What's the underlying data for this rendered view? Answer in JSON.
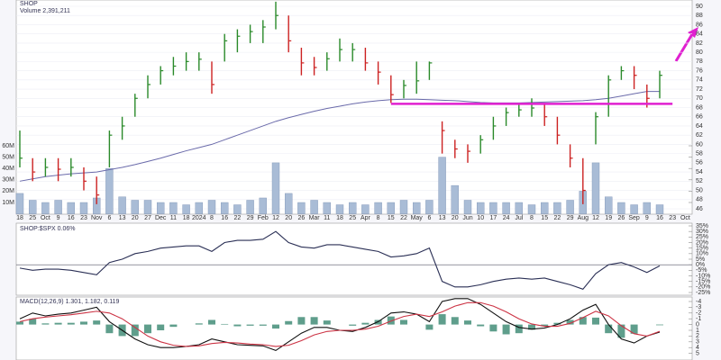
{
  "chart_data": [
    {
      "type": "ohlc",
      "title": "SHOP",
      "volume_title": "Volume 2,391,211",
      "categories": [
        "18",
        "25",
        "Oct",
        "9",
        "16",
        "23",
        "Nov",
        "6",
        "13",
        "20",
        "27",
        "Dec",
        "11",
        "18",
        "2024",
        "8",
        "16",
        "22",
        "29",
        "Feb",
        "12",
        "20",
        "26",
        "Mar",
        "11",
        "18",
        "25",
        "Apr",
        "8",
        "15",
        "22",
        "May",
        "6",
        "13",
        "20",
        "Jun",
        "10",
        "17",
        "24",
        "Jul",
        "8",
        "15",
        "22",
        "29",
        "Aug",
        "12",
        "19",
        "26",
        "Sep",
        "9",
        "16",
        "23",
        "Oct"
      ],
      "high": [
        63,
        57,
        57,
        57,
        57,
        55,
        53,
        63,
        66,
        71,
        75,
        77,
        79,
        80,
        80,
        78,
        84,
        85,
        86,
        87,
        91,
        88,
        81,
        79,
        80,
        83,
        82,
        81,
        78,
        75,
        74,
        78,
        78,
        65,
        61,
        60,
        62,
        66,
        68,
        69,
        70,
        69,
        66,
        60,
        57,
        67,
        75,
        77,
        77,
        73,
        76,
        null,
        null
      ],
      "low": [
        55,
        52,
        53,
        52,
        53,
        50,
        47,
        55,
        61,
        66,
        70,
        73,
        75,
        76,
        76,
        71,
        78,
        80,
        82,
        82,
        85,
        80,
        75,
        75,
        76,
        78,
        78,
        76,
        73,
        69,
        70,
        71,
        74,
        58,
        57,
        56,
        58,
        61,
        64,
        66,
        66,
        64,
        60,
        55,
        47,
        60,
        66,
        74,
        72,
        68,
        70,
        null,
        null
      ],
      "close": [
        57,
        54,
        55,
        54.6,
        55,
        52,
        49,
        62,
        64,
        70,
        73,
        76,
        77,
        78,
        78.5,
        73,
        82.5,
        83.5,
        84.5,
        85.5,
        88,
        82.5,
        77.7,
        76.7,
        78.6,
        80.6,
        80.6,
        77.7,
        75.7,
        70.8,
        72.8,
        73.8,
        77.7,
        63,
        59,
        58.5,
        61,
        64,
        66.9,
        67.5,
        67.9,
        66,
        62,
        57,
        50,
        66,
        74,
        76,
        75,
        70,
        75,
        null,
        null
      ],
      "up_color": "#2a8a2a",
      "down_color": "#cc2222",
      "moving_average": [
        52,
        52.5,
        53,
        53.3,
        53.6,
        53.8,
        54,
        54.5,
        55,
        55.6,
        56.3,
        57,
        57.8,
        58.6,
        59.3,
        60,
        61,
        62,
        63,
        64,
        65,
        65.8,
        66.5,
        67.2,
        67.8,
        68.3,
        68.8,
        69.2,
        69.5,
        69.7,
        69.8,
        69.8,
        69.7,
        69.6,
        69.5,
        69.3,
        69.1,
        69,
        69,
        69,
        69.1,
        69.2,
        69.3,
        69.4,
        69.5,
        69.7,
        70,
        70.5,
        71,
        71.5,
        71.5,
        null,
        null
      ],
      "ma_color": "#6a6aaa",
      "ylim": [
        46,
        90
      ],
      "yticks": [
        46,
        48,
        50,
        52,
        54,
        56,
        58,
        60,
        62,
        64,
        66,
        68,
        70,
        72,
        74,
        76,
        78,
        80,
        82,
        84,
        86,
        88,
        90
      ],
      "volume": [
        18,
        12,
        10,
        12,
        10,
        10,
        14,
        40,
        15,
        12,
        12,
        10,
        10,
        8,
        10,
        12,
        10,
        8,
        12,
        14,
        45,
        18,
        10,
        12,
        10,
        8,
        10,
        8,
        10,
        10,
        12,
        10,
        12,
        50,
        25,
        12,
        10,
        10,
        10,
        10,
        8,
        10,
        10,
        12,
        20,
        45,
        15,
        10,
        8,
        10,
        8,
        null,
        null
      ],
      "volume_color": "#a9bcd6",
      "volume_lim": [
        0,
        60
      ],
      "volume_ticks": [
        {
          "value": 10,
          "label": "10M"
        },
        {
          "value": 20,
          "label": "20M"
        },
        {
          "value": 30,
          "label": "30M"
        },
        {
          "value": 40,
          "label": "40M"
        },
        {
          "value": 50,
          "label": "50M"
        },
        {
          "value": 60,
          "label": "60M"
        }
      ],
      "support": {
        "value": 68.8,
        "start": 29,
        "end": 51,
        "color": "#e020d0"
      }
    },
    {
      "type": "line",
      "title": "SHOP:$SPX 0.06%",
      "values": [
        -3,
        -5,
        -4,
        -4,
        -5,
        -7,
        -9,
        2,
        5,
        10,
        12,
        15,
        16,
        17,
        17,
        12,
        20,
        22,
        22,
        23,
        30,
        20,
        16,
        15,
        18,
        18,
        16,
        14,
        12,
        7,
        8,
        10,
        15,
        -15,
        -20,
        -20,
        -18,
        -15,
        -13,
        -12,
        -13,
        -12,
        -15,
        -18,
        -22,
        -8,
        0,
        2,
        -2,
        -7,
        -1,
        null,
        null
      ],
      "color": "#2a2f55",
      "zero_line": 0,
      "ylim": [
        -25,
        35
      ],
      "yticks": [
        {
          "value": -25,
          "label": "-25%"
        },
        {
          "value": -20,
          "label": "-20%"
        },
        {
          "value": -15,
          "label": "-15%"
        },
        {
          "value": -10,
          "label": "-10%"
        },
        {
          "value": -5,
          "label": "-5%"
        },
        {
          "value": 0,
          "label": "0%"
        },
        {
          "value": 5,
          "label": "5%"
        },
        {
          "value": 10,
          "label": "10%"
        },
        {
          "value": 15,
          "label": "15%"
        },
        {
          "value": 20,
          "label": "20%"
        },
        {
          "value": 25,
          "label": "25%"
        },
        {
          "value": 30,
          "label": "30%"
        },
        {
          "value": 35,
          "label": "35%"
        }
      ]
    },
    {
      "type": "macd",
      "title": "MACD(12,26,9) 1.301, 1.182, 0.119",
      "series": [
        {
          "color": "#111111",
          "values": [
            -1,
            -2,
            -1.5,
            -1.8,
            -2,
            -2.5,
            -3,
            -0.5,
            1,
            2.5,
            3.5,
            4,
            4,
            3.8,
            3.5,
            2.5,
            3,
            3.5,
            3.6,
            3.7,
            4.5,
            3,
            1.5,
            0.5,
            0.5,
            1,
            1.2,
            0.5,
            -0.5,
            -2,
            -2.2,
            -1.8,
            -0.5,
            -4,
            -4.5,
            -4.5,
            -3.5,
            -2,
            -0.5,
            0.5,
            0.8,
            0.6,
            0,
            -1,
            -2.5,
            -3.5,
            0,
            2.5,
            3.2,
            2,
            1.301,
            null,
            null
          ]
        },
        {
          "color": "#cc3344",
          "values": [
            -0.5,
            -1,
            -1.3,
            -1.5,
            -1.7,
            -2,
            -2.3,
            -2,
            -1,
            0.5,
            2,
            3,
            3.6,
            3.8,
            3.7,
            3.3,
            3.1,
            3.2,
            3.4,
            3.5,
            3.8,
            3.6,
            2.8,
            1.8,
            1.2,
            1,
            1,
            0.8,
            0.3,
            -0.6,
            -1.4,
            -1.8,
            -1.4,
            -2.2,
            -3.2,
            -3.8,
            -3.8,
            -3.2,
            -2.2,
            -1,
            -0.1,
            0.3,
            0.3,
            -0.2,
            -1.2,
            -2.3,
            -1.5,
            0.2,
            1.6,
            2,
            1.182,
            null,
            null
          ]
        }
      ],
      "histogram": [
        -0.5,
        -1,
        -0.2,
        -0.3,
        -0.3,
        -0.5,
        -0.7,
        1.5,
        2,
        2,
        1.5,
        1,
        0.4,
        0,
        -0.2,
        -0.8,
        -0.1,
        0.3,
        0.2,
        0.2,
        0.7,
        -0.6,
        -1.3,
        -1.3,
        -0.7,
        0,
        0.2,
        -0.3,
        -0.8,
        -1.4,
        -0.8,
        0,
        0.9,
        -1.8,
        -1.3,
        -0.7,
        0.3,
        1.2,
        1.7,
        1.5,
        0.9,
        0.3,
        -0.3,
        -0.8,
        -1.3,
        -1.2,
        1.5,
        2.3,
        1.6,
        0,
        0.119,
        null,
        null
      ],
      "histogram_color": "#5f9e8c",
      "ylim": [
        -4,
        5
      ],
      "yticks": [
        -4,
        -3,
        -2,
        -1,
        0,
        1,
        2,
        3,
        4,
        5
      ]
    }
  ]
}
